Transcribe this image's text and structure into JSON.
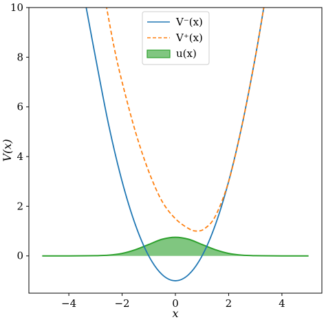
{
  "chart_data": {
    "type": "line",
    "xlabel": "x",
    "ylabel": "V(x)",
    "xlim": [
      -5.5,
      5.5
    ],
    "ylim": [
      -1.5,
      10
    ],
    "xticks": [
      -4,
      -2,
      0,
      2,
      4
    ],
    "xtick_labels": [
      "−4",
      "−2",
      "0",
      "2",
      "4"
    ],
    "yticks": [
      0,
      2,
      4,
      6,
      8,
      10
    ],
    "ytick_labels": [
      "0",
      "2",
      "4",
      "6",
      "8",
      "10"
    ],
    "grid": false,
    "legend_position": "top-center",
    "series": [
      {
        "name": "V⁻(x)",
        "style": "solid",
        "color": "#1f77b4",
        "x": [
          -3.4,
          -3.0,
          -2.5,
          -2.0,
          -1.5,
          -1.0,
          -0.5,
          0.0,
          0.5,
          1.0,
          1.5,
          2.0,
          2.5,
          3.0,
          3.35
        ],
        "y": [
          10.3,
          8.0,
          5.25,
          3.0,
          1.25,
          0.0,
          -0.75,
          -1.0,
          -0.75,
          0.0,
          1.25,
          3.0,
          5.25,
          8.0,
          10.2
        ]
      },
      {
        "name": "V⁺(x)",
        "style": "dashed",
        "color": "#ff7f0e",
        "x": [
          -2.6,
          -2.3,
          -2.0,
          -1.5,
          -1.0,
          -0.5,
          0.0,
          0.5,
          0.8,
          1.1,
          1.5,
          2.0,
          2.5,
          3.0,
          3.35
        ],
        "y": [
          10.1,
          8.4,
          7.0,
          5.0,
          3.4,
          2.2,
          1.5,
          1.1,
          1.0,
          1.1,
          1.6,
          3.0,
          5.25,
          8.0,
          10.2
        ]
      }
    ],
    "area": {
      "name": "u(x)",
      "color": "#2ca02c",
      "x": [
        -5.0,
        -4.0,
        -3.0,
        -2.5,
        -2.0,
        -1.5,
        -1.0,
        -0.5,
        0.0,
        0.5,
        1.0,
        1.5,
        2.0,
        2.5,
        3.0,
        4.0,
        5.0
      ],
      "y": [
        0.0,
        0.0,
        0.01,
        0.03,
        0.1,
        0.25,
        0.46,
        0.67,
        0.75,
        0.67,
        0.46,
        0.25,
        0.1,
        0.03,
        0.01,
        0.0,
        0.0
      ]
    }
  }
}
